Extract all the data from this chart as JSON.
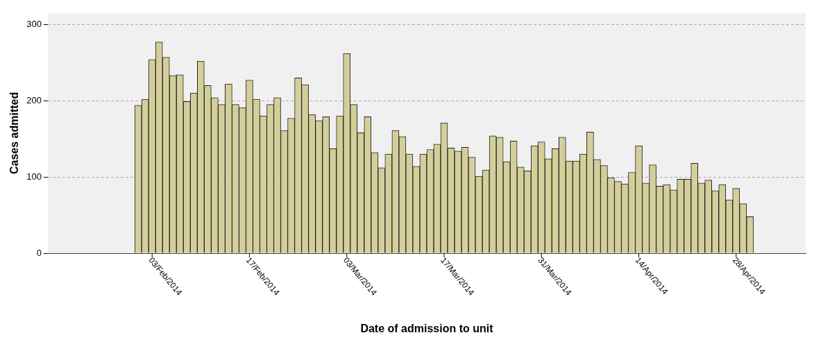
{
  "chart_data": {
    "type": "bar",
    "xlabel": "Date of admission to unit",
    "ylabel": "Cases admitted",
    "x": [
      "2014-02-01",
      "2014-02-02",
      "2014-02-03",
      "2014-02-04",
      "2014-02-05",
      "2014-02-06",
      "2014-02-07",
      "2014-02-08",
      "2014-02-09",
      "2014-02-10",
      "2014-02-11",
      "2014-02-12",
      "2014-02-13",
      "2014-02-14",
      "2014-02-15",
      "2014-02-16",
      "2014-02-17",
      "2014-02-18",
      "2014-02-19",
      "2014-02-20",
      "2014-02-21",
      "2014-02-22",
      "2014-02-23",
      "2014-02-24",
      "2014-02-25",
      "2014-02-26",
      "2014-02-27",
      "2014-02-28",
      "2014-03-01",
      "2014-03-02",
      "2014-03-03",
      "2014-03-04",
      "2014-03-05",
      "2014-03-06",
      "2014-03-07",
      "2014-03-08",
      "2014-03-09",
      "2014-03-10",
      "2014-03-11",
      "2014-03-12",
      "2014-03-13",
      "2014-03-14",
      "2014-03-15",
      "2014-03-16",
      "2014-03-17",
      "2014-03-18",
      "2014-03-19",
      "2014-03-20",
      "2014-03-21",
      "2014-03-22",
      "2014-03-23",
      "2014-03-24",
      "2014-03-25",
      "2014-03-26",
      "2014-03-27",
      "2014-03-28",
      "2014-03-29",
      "2014-03-30",
      "2014-03-31",
      "2014-04-01",
      "2014-04-02",
      "2014-04-03",
      "2014-04-04",
      "2014-04-05",
      "2014-04-06",
      "2014-04-07",
      "2014-04-08",
      "2014-04-09",
      "2014-04-10",
      "2014-04-11",
      "2014-04-12",
      "2014-04-13",
      "2014-04-14",
      "2014-04-15",
      "2014-04-16",
      "2014-04-17",
      "2014-04-18",
      "2014-04-19",
      "2014-04-20",
      "2014-04-21",
      "2014-04-22",
      "2014-04-23",
      "2014-04-24",
      "2014-04-25",
      "2014-04-26",
      "2014-04-27",
      "2014-04-28",
      "2014-04-29",
      "2014-04-30"
    ],
    "values": [
      194,
      202,
      254,
      277,
      257,
      233,
      234,
      199,
      210,
      252,
      220,
      204,
      195,
      222,
      195,
      191,
      227,
      202,
      180,
      195,
      204,
      161,
      177,
      230,
      221,
      182,
      174,
      179,
      137,
      180,
      262,
      195,
      158,
      179,
      132,
      112,
      130,
      161,
      153,
      130,
      114,
      130,
      136,
      143,
      171,
      138,
      134,
      139,
      126,
      101,
      109,
      154,
      152,
      120,
      147,
      113,
      108,
      141,
      146,
      124,
      137,
      152,
      121,
      121,
      130,
      159,
      123,
      115,
      99,
      94,
      91,
      106,
      141,
      92,
      116,
      88,
      90,
      83,
      97,
      97,
      118,
      92,
      96,
      82,
      90,
      70,
      85,
      65,
      48
    ],
    "color": "#d4cf9a",
    "xlim": [
      "2014-01-19",
      "2014-05-08"
    ],
    "xticks": [
      {
        "value": "2014-02-03",
        "label": "03/Feb/2014"
      },
      {
        "value": "2014-02-17",
        "label": "17/Feb/2014"
      },
      {
        "value": "2014-03-03",
        "label": "03/Mar/2014"
      },
      {
        "value": "2014-03-17",
        "label": "17/Mar/2014"
      },
      {
        "value": "2014-03-31",
        "label": "31/Mar/2014"
      },
      {
        "value": "2014-04-14",
        "label": "14/Apr/2014"
      },
      {
        "value": "2014-04-28",
        "label": "28/Apr/2014"
      }
    ],
    "ylim": [
      0,
      315
    ],
    "yticks": [
      0,
      100,
      200,
      300
    ],
    "grid": "y",
    "legend": false
  }
}
